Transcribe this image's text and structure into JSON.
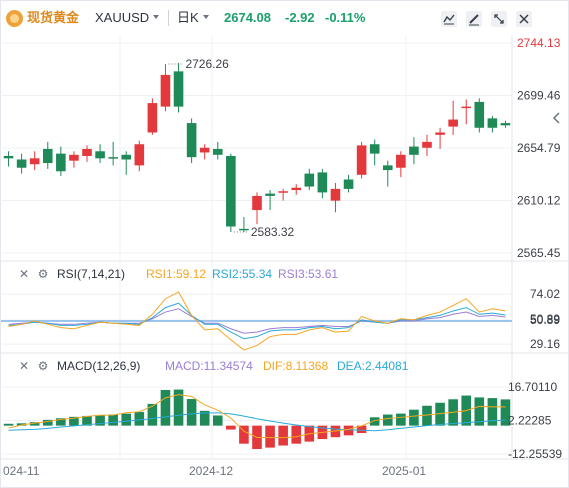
{
  "header": {
    "symbol_name": "现货黄金",
    "symbol_code": "XAUUSD",
    "period": "日K",
    "price": "2674.08",
    "change": "-2.92",
    "change_pct": "-0.11%",
    "tools": [
      "indicator-icon",
      "draw-icon",
      "fullscreen-icon",
      "close-icon"
    ]
  },
  "colors": {
    "up": "#e4393c",
    "down": "#1f8a58",
    "accent": "#e08a1e",
    "grid": "#eef0f3"
  },
  "chart_data": [
    {
      "type": "candlestick",
      "title": "",
      "y_ticks": [
        "2744.13",
        "2699.46",
        "2654.79",
        "2610.12",
        "2565.45"
      ],
      "ylim": [
        2565.45,
        2744.13
      ],
      "x_ticks": [
        "024-11",
        "2024-12",
        "2025-01"
      ],
      "current_price_label": "2744.13",
      "annotations": [
        {
          "text": "2726.26",
          "value": 2726.26
        },
        {
          "text": "2583.32",
          "value": 2583.32
        }
      ],
      "candles": [
        [
          2646,
          2648,
          2639,
          2652,
          "d"
        ],
        [
          2645,
          2638,
          2633,
          2650,
          "d"
        ],
        [
          2646,
          2641,
          2636,
          2652,
          "u"
        ],
        [
          2654,
          2642,
          2637,
          2660,
          "d"
        ],
        [
          2650,
          2635,
          2631,
          2656,
          "d"
        ],
        [
          2644,
          2649,
          2638,
          2652,
          "u"
        ],
        [
          2648,
          2654,
          2643,
          2657,
          "u"
        ],
        [
          2652,
          2646,
          2642,
          2658,
          "d"
        ],
        [
          2647,
          2646,
          2640,
          2660,
          "d"
        ],
        [
          2649,
          2645,
          2632,
          2652,
          "d"
        ],
        [
          2640,
          2658,
          2635,
          2661,
          "u"
        ],
        [
          2668,
          2693,
          2666,
          2697,
          "u"
        ],
        [
          2690,
          2717,
          2686,
          2726.26,
          "u"
        ],
        [
          2720,
          2690,
          2685,
          2727,
          "d"
        ],
        [
          2676,
          2647,
          2642,
          2680,
          "d"
        ],
        [
          2651,
          2655,
          2645,
          2658,
          "u"
        ],
        [
          2654,
          2649,
          2645,
          2660,
          "d"
        ],
        [
          2648,
          2588,
          2583.32,
          2650,
          "d"
        ],
        [
          2586,
          2586,
          2583.32,
          2596,
          "d"
        ],
        [
          2602,
          2614,
          2590,
          2617,
          "u"
        ],
        [
          2616,
          2614,
          2602,
          2619,
          "d"
        ],
        [
          2617,
          2618,
          2610,
          2620,
          "u"
        ],
        [
          2619,
          2621,
          2615,
          2624,
          "u"
        ],
        [
          2633,
          2622,
          2619,
          2637,
          "d"
        ],
        [
          2634,
          2617,
          2612,
          2637,
          "d"
        ],
        [
          2610,
          2620,
          2600,
          2625,
          "u"
        ],
        [
          2628,
          2620,
          2617,
          2632,
          "d"
        ],
        [
          2632,
          2657,
          2629,
          2660,
          "u"
        ],
        [
          2658,
          2650,
          2640,
          2662,
          "d"
        ],
        [
          2640,
          2636,
          2622,
          2644,
          "d"
        ],
        [
          2638,
          2649,
          2630,
          2652,
          "u"
        ],
        [
          2656,
          2649,
          2641,
          2664,
          "d"
        ],
        [
          2655,
          2660,
          2648,
          2666,
          "u"
        ],
        [
          2666,
          2668,
          2654,
          2672,
          "u"
        ],
        [
          2673,
          2679,
          2666,
          2695,
          "u"
        ],
        [
          2690,
          2690,
          2675,
          2696,
          "u"
        ],
        [
          2694,
          2672,
          2668,
          2697,
          "d"
        ],
        [
          2680,
          2672,
          2668,
          2682,
          "d"
        ],
        [
          2676,
          2674.08,
          2672,
          2678,
          "d"
        ]
      ]
    },
    {
      "type": "line",
      "title": "RSI(7,14,21)",
      "series": [
        {
          "name": "RSI1:59.12",
          "color": "#f5a623",
          "values": [
            45,
            47,
            50,
            47,
            44,
            43,
            46,
            49,
            48,
            47,
            46,
            56,
            70,
            76,
            55,
            42,
            43,
            33,
            24,
            28,
            36,
            38,
            38,
            42,
            44,
            40,
            41,
            54,
            50,
            48,
            52,
            51,
            55,
            58,
            64,
            70,
            58,
            61,
            59.12
          ]
        },
        {
          "name": "RSI2:55.34",
          "color": "#29a9d8",
          "values": [
            46,
            47,
            49,
            48,
            46,
            46,
            47,
            49,
            48,
            48,
            47,
            53,
            62,
            66,
            55,
            47,
            47,
            40,
            34,
            36,
            41,
            42,
            42,
            44,
            45,
            43,
            44,
            51,
            49,
            48,
            51,
            51,
            53,
            55,
            59,
            62,
            56,
            57,
            55.34
          ]
        },
        {
          "name": "RSI3:53.61",
          "color": "#9b7ed6",
          "values": [
            47,
            48,
            49,
            48,
            47,
            47,
            48,
            49,
            48,
            48,
            48,
            52,
            58,
            61,
            54,
            48,
            48,
            43,
            39,
            40,
            43,
            44,
            44,
            45,
            46,
            45,
            45,
            50,
            49,
            48,
            50,
            50,
            52,
            53,
            56,
            58,
            54,
            55,
            53.61
          ]
        }
      ],
      "ref_line": 50,
      "y_ticks": [
        "74.02",
        "50.89",
        "29.16"
      ],
      "ylim": [
        23.92,
        82.32
      ]
    },
    {
      "type": "bar+line",
      "title": "MACD(12,26,9)",
      "series": [
        {
          "name": "MACD:11.34574",
          "type": "bar",
          "values": [
            0.8,
            1.0,
            1.5,
            2.5,
            3.2,
            3.8,
            4.2,
            4.6,
            4.8,
            5.2,
            5.9,
            9.4,
            15.4,
            15.6,
            11.5,
            6.4,
            4.4,
            -1.7,
            -7.8,
            -10.1,
            -9.5,
            -8.6,
            -7.8,
            -6.9,
            -5.8,
            -5.0,
            -4.2,
            -3.2,
            3.6,
            4.8,
            5.2,
            6.9,
            8.6,
            9.9,
            11.4,
            13.0,
            12.2,
            11.9,
            11.34574
          ]
        },
        {
          "name": "DIF:8.11368",
          "type": "line",
          "color": "#f5a623",
          "values": [
            -1.0,
            0.3,
            1.1,
            1.8,
            2.7,
            3.2,
            4.0,
            4.5,
            4.6,
            5.6,
            6.0,
            8.4,
            12.0,
            13.4,
            12.6,
            9.0,
            6.7,
            3.3,
            -2.4,
            -5.1,
            -5.1,
            -5.2,
            -4.8,
            -3.5,
            -2.9,
            -2.3,
            -1.6,
            -0.1,
            2.2,
            3.1,
            3.6,
            4.1,
            4.6,
            5.2,
            5.8,
            6.5,
            8.3,
            8.1,
            8.11368
          ]
        },
        {
          "name": "DEA:2.44081",
          "type": "line",
          "color": "#29a9d8",
          "values": [
            -2.0,
            -1.8,
            -1.6,
            -1.2,
            -0.6,
            -0.1,
            0.4,
            0.9,
            1.4,
            1.9,
            2.5,
            3.1,
            3.8,
            4.5,
            5.1,
            5.5,
            5.5,
            5.1,
            4.1,
            3.0,
            2.0,
            1.1,
            0.3,
            -0.4,
            -1.0,
            -1.5,
            -1.8,
            -2.0,
            -2.2,
            -1.8,
            -1.2,
            -0.6,
            0.0,
            0.5,
            0.9,
            1.3,
            1.7,
            2.1,
            2.44081
          ]
        }
      ],
      "y_ticks": [
        "16.70110",
        "2.22285",
        "-12.25539"
      ],
      "ylim": [
        -12.25539,
        16.7011
      ]
    }
  ]
}
